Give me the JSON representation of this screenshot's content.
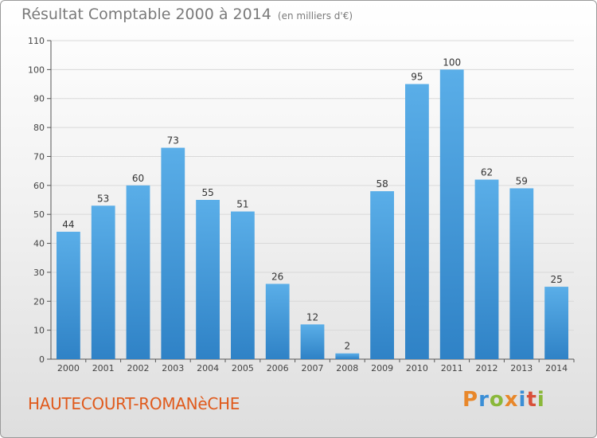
{
  "header": {
    "title": "Résultat Comptable 2000 à 2014",
    "unit": "(en milliers d'€)"
  },
  "footer": {
    "commune": "HAUTECOURT-ROMANèCHE",
    "logo_text": "Proxiti"
  },
  "colors": {
    "bar_light": "#5aaee8",
    "bar_dark": "#2f82c6",
    "grid": "#d9d9d9",
    "commune_text": "#e05a1c",
    "title_text": "#7a7a7a"
  },
  "chart_data": {
    "type": "bar",
    "title": "Résultat Comptable 2000 à 2014",
    "xlabel": "",
    "ylabel": "",
    "ylim": [
      0,
      110
    ],
    "yticks": [
      0,
      10,
      20,
      30,
      40,
      50,
      60,
      70,
      80,
      90,
      100,
      110
    ],
    "grid": true,
    "categories": [
      "2000",
      "2001",
      "2002",
      "2003",
      "2004",
      "2005",
      "2006",
      "2007",
      "2008",
      "2009",
      "2010",
      "2011",
      "2012",
      "2013",
      "2014"
    ],
    "values": [
      44,
      53,
      60,
      73,
      55,
      51,
      26,
      12,
      2,
      58,
      95,
      100,
      62,
      59,
      25
    ]
  }
}
